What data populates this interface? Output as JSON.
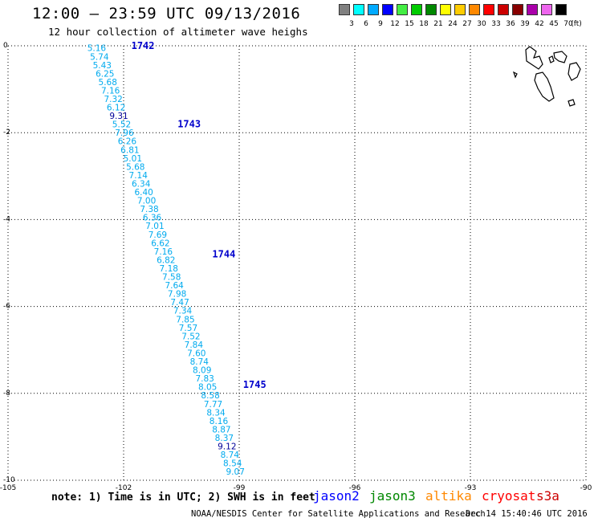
{
  "header": {
    "title": "12:00 — 23:59 UTC 09/13/2016",
    "subtitle": "12 hour collection of altimeter wave heighs"
  },
  "legend": {
    "unit": "(ft)",
    "levels": [
      {
        "label": "3",
        "color": "#808080"
      },
      {
        "label": "6",
        "color": "#00ffff"
      },
      {
        "label": "9",
        "color": "#00aaff"
      },
      {
        "label": "12",
        "color": "#0000ff"
      },
      {
        "label": "15",
        "color": "#44ee44"
      },
      {
        "label": "18",
        "color": "#00cc00"
      },
      {
        "label": "21",
        "color": "#008800"
      },
      {
        "label": "24",
        "color": "#ffff00"
      },
      {
        "label": "27",
        "color": "#ffcc00"
      },
      {
        "label": "30",
        "color": "#ff8800"
      },
      {
        "label": "33",
        "color": "#ff0000"
      },
      {
        "label": "36",
        "color": "#cc0000"
      },
      {
        "label": "39",
        "color": "#880000"
      },
      {
        "label": "42",
        "color": "#aa00aa"
      },
      {
        "label": "45",
        "color": "#ee66ee"
      },
      {
        "label": "70",
        "color": "#000000"
      }
    ]
  },
  "chart_data": {
    "type": "scatter",
    "xlim": [
      -105,
      -90
    ],
    "ylim": [
      -10,
      0
    ],
    "x_ticks": [
      "-105",
      "-102",
      "-99",
      "-96",
      "-93",
      "-90"
    ],
    "y_ticks": [
      "0",
      "-2",
      "-4",
      "-6",
      "-8",
      "-10"
    ],
    "grid": true,
    "track_start": [
      -102.7,
      -0.05
    ],
    "track_end": [
      -99.1,
      -9.8
    ],
    "points": [
      "5.16",
      "5.74",
      "5.43",
      "6.25",
      "5.68",
      "7.16",
      "7.32",
      "6.12",
      "9.31",
      "5.52",
      "7.96",
      "6.26",
      "6.81",
      "5.01",
      "5.68",
      "7.14",
      "6.34",
      "6.40",
      "7.00",
      "7.38",
      "6.36",
      "7.01",
      "7.69",
      "6.62",
      "7.16",
      "6.82",
      "7.18",
      "7.58",
      "7.64",
      "7.98",
      "7.47",
      "7.34",
      "7.85",
      "7.57",
      "7.52",
      "7.84",
      "7.60",
      "8.74",
      "8.09",
      "7.83",
      "8.05",
      "8.58",
      "7.77",
      "8.34",
      "8.16",
      "8.87",
      "8.37",
      "9.12",
      "8.74",
      "8.54",
      "9.07"
    ],
    "point_colors": {
      "9.31": "#000099",
      "9.12": "#000099"
    },
    "default_color": "#00aaee",
    "cycle_labels": [
      {
        "label": "1742",
        "x": -101.8,
        "y": 0.0
      },
      {
        "label": "1743",
        "x": -100.6,
        "y": -1.8
      },
      {
        "label": "1744",
        "x": -99.7,
        "y": -4.8
      },
      {
        "label": "1745",
        "x": -98.9,
        "y": -7.8
      }
    ]
  },
  "footer": {
    "note": "note: 1) Time is in UTC; 2) SWH is in feet",
    "satellites": [
      {
        "name": "jason2",
        "color": "#0000ff"
      },
      {
        "name": "jason3",
        "color": "#008800"
      },
      {
        "name": "altika",
        "color": "#ff8800"
      },
      {
        "name": "cryosat",
        "color": "#ff0000"
      },
      {
        "name": "s3a",
        "color": "#cc0000"
      }
    ],
    "credit": "NOAA/NESDIS Center for Satellite Applications and Research",
    "timestamp": "Dec 14 15:40:46 UTC 2016"
  }
}
